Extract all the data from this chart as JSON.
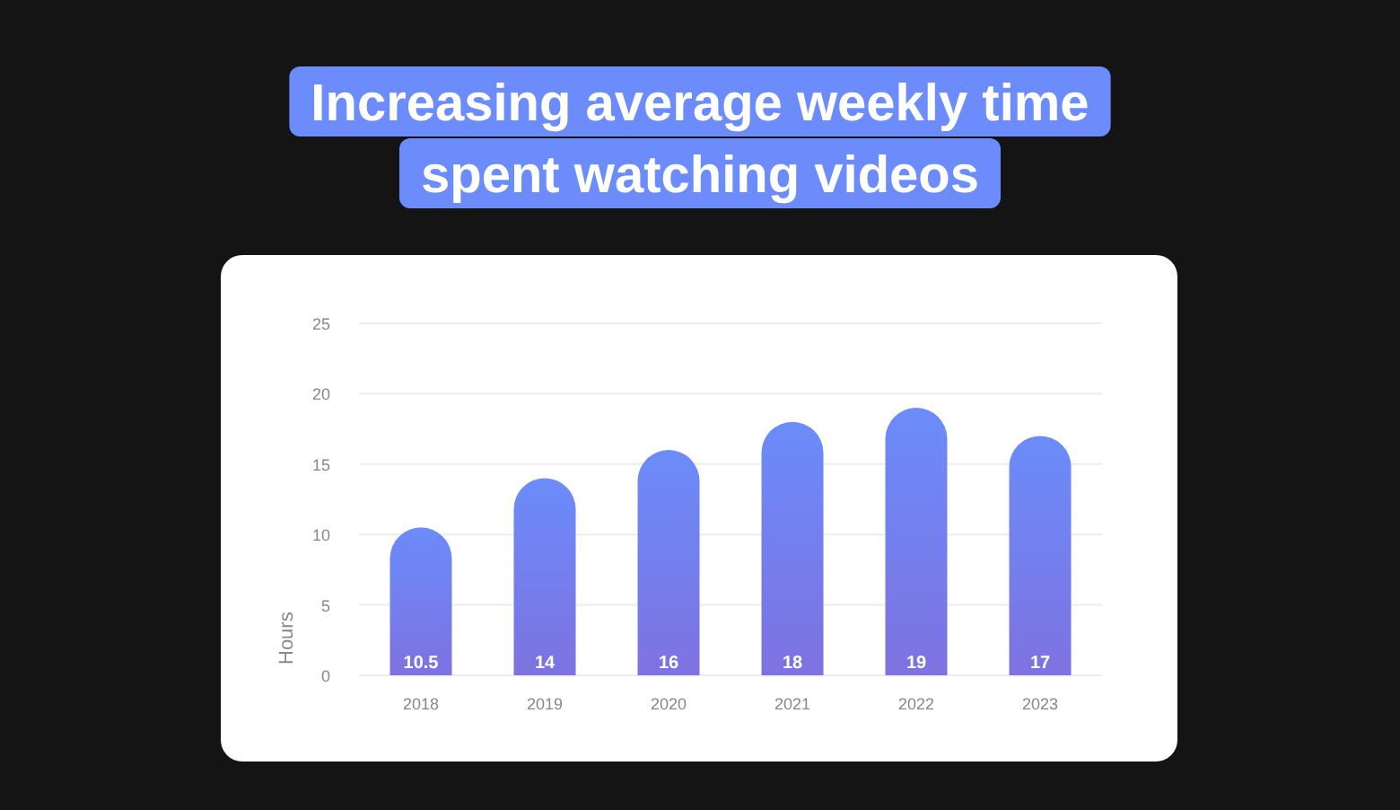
{
  "chart_data": {
    "type": "bar",
    "title": "Increasing average weekly time spent watching videos",
    "categories": [
      "2018",
      "2019",
      "2020",
      "2021",
      "2022",
      "2023"
    ],
    "values": [
      10.5,
      14,
      16,
      18,
      19,
      17
    ],
    "color": "#6b8cfa",
    "ylabel": "Hours",
    "ylim": [
      0,
      25
    ],
    "yticks": [
      0,
      5,
      10,
      15,
      20,
      25
    ],
    "grid": "y",
    "data_labels": true
  }
}
